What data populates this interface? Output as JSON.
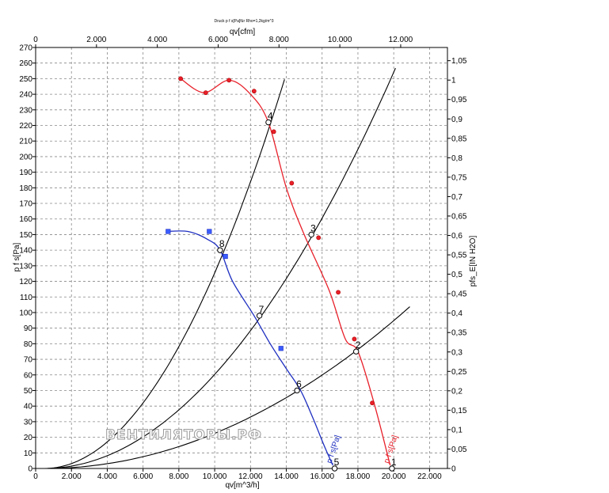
{
  "chart_data": {
    "type": "line",
    "header_text": "Druck p f s[Pa]für Rho=1,2kg/m^3",
    "top_axis_label": "qv[cfm]",
    "bottom_axis_label": "qv[m^3/h]",
    "left_axis_label": "p f s[Pa]",
    "right_axis_label": "pfs_E[IN H2O]",
    "watermark": "ВЕНТИЛЯТОРЫ.РФ",
    "x_range": [
      0,
      23000
    ],
    "y_range": [
      0,
      270
    ],
    "bottom_ticks": [
      "0",
      "2.000",
      "4.000",
      "6.000",
      "8.000",
      "10.000",
      "12.000",
      "14.000",
      "16.000",
      "18.000",
      "20.000",
      "22.000"
    ],
    "top_ticks": [
      "0",
      "2.000",
      "4.000",
      "6.000",
      "8.000",
      "10.000",
      "12.000"
    ],
    "left_ticks": [
      "0",
      "10",
      "20",
      "30",
      "40",
      "50",
      "60",
      "70",
      "80",
      "90",
      "100",
      "110",
      "120",
      "130",
      "140",
      "150",
      "160",
      "170",
      "180",
      "190",
      "200",
      "210",
      "220",
      "230",
      "240",
      "250",
      "260",
      "270"
    ],
    "right_ticks": [
      "0",
      "0,05",
      "0,1",
      "0,15",
      "0,2",
      "0,25",
      "0,3",
      "0,35",
      "0,4",
      "0,45",
      "0,5",
      "0,55",
      "0,6",
      "0,65",
      "0,7",
      "0,75",
      "0,8",
      "0,85",
      "0,9",
      "0,95",
      "1",
      "1,05"
    ],
    "grid": true,
    "series": [
      {
        "name": "p f s[Pa]",
        "color": "#e8202a",
        "x": [
          8100,
          9400,
          10800,
          12000,
          13000,
          14000,
          15000,
          16400,
          17300,
          18000,
          18900,
          19800
        ],
        "y": [
          250,
          241,
          249,
          240,
          222,
          180,
          150,
          114,
          83,
          75,
          42,
          2
        ]
      },
      {
        "name": "p f s[Pa]",
        "color": "#1e2fc0",
        "x": [
          7300,
          8500,
          9600,
          10300,
          11000,
          12200,
          13100,
          14000,
          14800,
          15500,
          16100,
          16600
        ],
        "y": [
          152,
          152,
          147,
          140,
          120,
          98,
          80,
          64,
          50,
          32,
          15,
          2
        ]
      }
    ],
    "red_markers": [
      {
        "x": 8100,
        "y": 250
      },
      {
        "x": 9500,
        "y": 241
      },
      {
        "x": 10800,
        "y": 249
      },
      {
        "x": 12200,
        "y": 242
      },
      {
        "x": 13300,
        "y": 216
      },
      {
        "x": 14300,
        "y": 183
      },
      {
        "x": 15800,
        "y": 148
      },
      {
        "x": 16900,
        "y": 113
      },
      {
        "x": 17800,
        "y": 83
      },
      {
        "x": 18800,
        "y": 42
      }
    ],
    "blue_markers": [
      {
        "x": 7400,
        "y": 152
      },
      {
        "x": 9700,
        "y": 152
      },
      {
        "x": 10600,
        "y": 136
      },
      {
        "x": 13700,
        "y": 77
      }
    ],
    "system_curves": [
      {
        "k": 131,
        "x_end": 13900
      },
      {
        "k": 63,
        "x_end": 20100
      },
      {
        "k": 23.5,
        "x_end": 20900
      }
    ],
    "operating_points": [
      {
        "label": "1",
        "x": 19900,
        "y": 0
      },
      {
        "label": "2",
        "x": 17900,
        "y": 75
      },
      {
        "label": "3",
        "x": 15400,
        "y": 150
      },
      {
        "label": "4",
        "x": 13000,
        "y": 222
      },
      {
        "label": "5",
        "x": 16700,
        "y": 0
      },
      {
        "label": "6",
        "x": 14600,
        "y": 50
      },
      {
        "label": "7",
        "x": 12500,
        "y": 98
      },
      {
        "label": "8",
        "x": 10300,
        "y": 140
      }
    ],
    "curve_end_labels": [
      {
        "text": "p f s[Pa]",
        "color": "#e8202a",
        "x": 19800,
        "y": 2
      },
      {
        "text": "p f s[Pa]",
        "color": "#1e2fc0",
        "x": 16600,
        "y": 2
      }
    ]
  }
}
